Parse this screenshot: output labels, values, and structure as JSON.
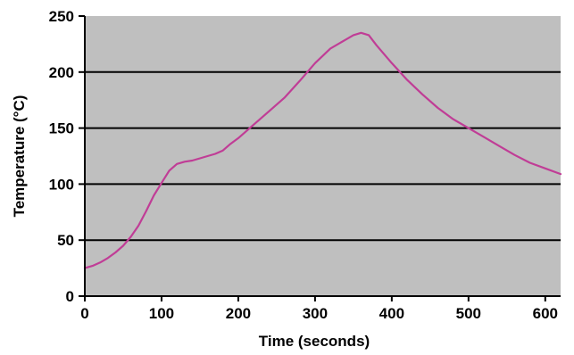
{
  "chart_data": {
    "type": "line",
    "title": "",
    "xlabel": "Time (seconds)",
    "ylabel": "Temperature (°C)",
    "xlim": [
      0,
      620
    ],
    "ylim": [
      0,
      250
    ],
    "x_ticks": [
      0,
      100,
      200,
      300,
      400,
      500,
      600
    ],
    "y_ticks": [
      0,
      50,
      100,
      150,
      200,
      250
    ],
    "grid": true,
    "legend": "none",
    "colors": {
      "plot_background": "#bfbfbf",
      "gridline": "#000000",
      "axis": "#000000",
      "series": "#c03d96"
    },
    "series": [
      {
        "x": [
          0,
          10,
          20,
          30,
          40,
          50,
          60,
          70,
          80,
          90,
          100,
          110,
          120,
          130,
          140,
          150,
          160,
          170,
          180,
          190,
          200,
          220,
          240,
          260,
          280,
          300,
          320,
          340,
          350,
          360,
          370,
          380,
          400,
          420,
          440,
          460,
          480,
          500,
          520,
          540,
          560,
          580,
          600,
          620
        ],
        "y": [
          25,
          27,
          30,
          34,
          39,
          45,
          53,
          63,
          76,
          90,
          101,
          112,
          118,
          120,
          121,
          123,
          125,
          127,
          130,
          136,
          141,
          153,
          165,
          177,
          192,
          208,
          221,
          229,
          233,
          235,
          233,
          224,
          208,
          193,
          180,
          168,
          158,
          150,
          142,
          134,
          126,
          119,
          114,
          109
        ]
      }
    ]
  }
}
